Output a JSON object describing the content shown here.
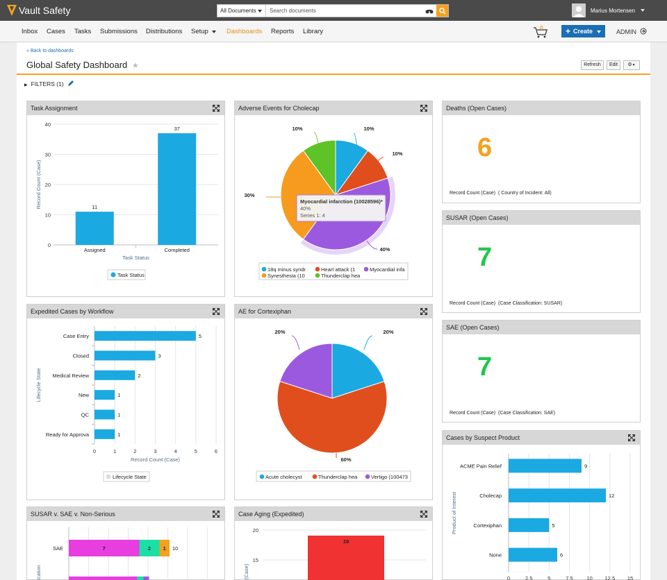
{
  "app": {
    "name": "Vault Safety"
  },
  "search": {
    "scope": "All Documents",
    "placeholder": "Search documents"
  },
  "user": {
    "name": "Marius Mortensen"
  },
  "nav": {
    "items": [
      "Inbox",
      "Cases",
      "Tasks",
      "Submissions",
      "Distributions",
      "Setup",
      "Dashboards",
      "Reports",
      "Library"
    ],
    "active": "Dashboards"
  },
  "cart": {
    "count": "0"
  },
  "create_label": "Create",
  "admin_label": "ADMIN",
  "page": {
    "back_link": "« Back to dashboards",
    "title": "Global Safety Dashboard",
    "buttons": {
      "refresh": "Refresh",
      "edit": "Edit"
    },
    "filters_label": "FILTERS (1)"
  },
  "panels": {
    "task_assignment": {
      "title": "Task Assignment",
      "chart_data": {
        "type": "bar",
        "categories": [
          "Assigned",
          "Completed"
        ],
        "values": [
          11,
          37
        ],
        "ylabel": "Record Count (Case)",
        "xlabel": "Task Status",
        "yticks": [
          "0",
          "10",
          "20",
          "30",
          "40"
        ],
        "ylim": [
          0,
          40
        ],
        "legend": [
          "Task Status"
        ],
        "color": "#1ba9e1"
      }
    },
    "adverse_events": {
      "title": "Adverse Events for Cholecap",
      "chart_data": {
        "type": "pie",
        "slices": [
          {
            "label": "18q minus syndr",
            "value": 10,
            "color": "#1ba9e1"
          },
          {
            "label": "Heart attack (1",
            "value": 10,
            "color": "#e04e1d"
          },
          {
            "label": "Myocardial infa",
            "value": 40,
            "color": "#9b59e0"
          },
          {
            "label": "Synesthesia (10",
            "value": 30,
            "color": "#f79b1e"
          },
          {
            "label": "Thunderclap hea",
            "value": 10,
            "color": "#5dc327"
          }
        ],
        "data_labels": [
          "10%",
          "10%",
          "40%",
          "30%",
          "10%"
        ],
        "tooltip": {
          "title": "Myocardial infarction (10028596)*",
          "pct": "40%",
          "series": "Series 1: 4"
        }
      }
    },
    "deaths": {
      "title": "Deaths (Open Cases)",
      "value": "6",
      "color": "#f4a11e",
      "label": "Record Count (Case)",
      "filter": "( Country of Incident: All)"
    },
    "susar": {
      "title": "SUSAR (Open Cases)",
      "value": "7",
      "color": "#1ec84b",
      "label": "Record Count (Case)",
      "filter": "(Case Classification: SUSAR)"
    },
    "sae": {
      "title": "SAE (Open Cases)",
      "value": "7",
      "color": "#1ec84b",
      "label": "Record Count (Case)",
      "filter": "(Case Classification: SAE)"
    },
    "expedited": {
      "title": "Expedited Cases by Workflow",
      "chart_data": {
        "type": "bar",
        "orientation": "horizontal",
        "categories": [
          "Case Entry",
          "Closed",
          "Medical Review",
          "New",
          "QC",
          "Ready for Approva"
        ],
        "values": [
          5,
          3,
          2,
          1,
          1,
          1
        ],
        "ylabel": "Lifecycle State",
        "xlabel": "Record Count (Case)",
        "xticks": [
          "0",
          "1",
          "2",
          "3",
          "4",
          "5",
          "6"
        ],
        "xlim": [
          0,
          6
        ],
        "legend": [
          "Lifecycle State"
        ],
        "color": "#1ba9e1"
      }
    },
    "ae_cortexiphan": {
      "title": "AE for Cortexiphan",
      "chart_data": {
        "type": "pie",
        "slices": [
          {
            "label": "Acute cholecyst",
            "value": 20,
            "color": "#1ba9e1"
          },
          {
            "label": "Thunderclap hea",
            "value": 60,
            "color": "#e04e1d"
          },
          {
            "label": "Vertigo (100473",
            "value": 20,
            "color": "#9b59e0"
          }
        ],
        "data_labels": [
          "20%",
          "60%",
          "20%"
        ]
      }
    },
    "suspect_product": {
      "title": "Cases by Suspect Product",
      "chart_data": {
        "type": "bar",
        "orientation": "horizontal",
        "categories": [
          "ACME Pain Relief",
          "Cholecap",
          "Cortexiphan",
          "None"
        ],
        "values": [
          9,
          12,
          5,
          6
        ],
        "ylabel": "Product of Interest",
        "xticks": [
          "0",
          "2.5",
          "5",
          "7.5",
          "10",
          "12.5",
          "15"
        ],
        "xlim": [
          0,
          15
        ],
        "color": "#1ba9e1"
      }
    },
    "susar_sae": {
      "title": "SUSAR v. SAE v. Non-Serious",
      "chart_data": {
        "type": "bar",
        "orientation": "horizontal",
        "stacked": true,
        "categories": [
          "SAE"
        ],
        "series": [
          {
            "values": [
              7
            ],
            "color": "#e83ee0"
          },
          {
            "values": [
              2
            ],
            "color": "#1be0a5"
          },
          {
            "values": [
              1
            ],
            "color": "#f4a11e"
          }
        ],
        "totals": [
          10
        ],
        "ylabel": "ification"
      }
    },
    "case_aging": {
      "title": "Case Aging (Expedited)",
      "chart_data": {
        "type": "bar",
        "values": [
          19
        ],
        "yticks": [
          "15",
          "20"
        ],
        "ylabel": "(Case)",
        "color": "#f03232"
      }
    }
  }
}
